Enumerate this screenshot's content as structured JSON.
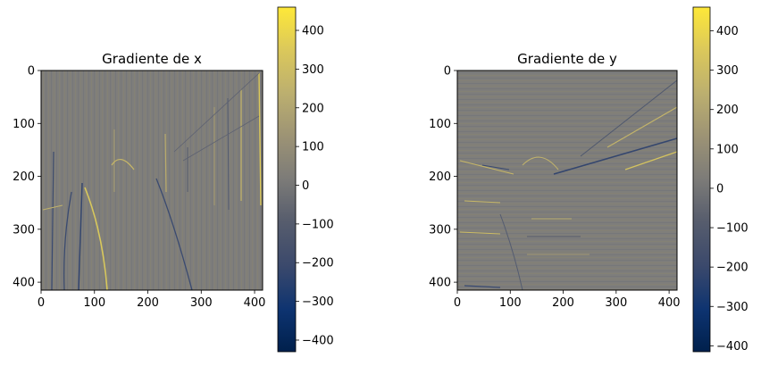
{
  "chart_data": [
    {
      "type": "heatmap",
      "title": "Gradiente de x",
      "xlabel": "",
      "ylabel": "",
      "xlim": [
        0,
        415
      ],
      "ylim": [
        415,
        0
      ],
      "xticks": [
        0,
        100,
        200,
        300,
        400
      ],
      "yticks": [
        0,
        100,
        200,
        300,
        400
      ],
      "colormap": "cividis",
      "colorbar": {
        "range": [
          -430,
          460
        ],
        "ticks": [
          -400,
          -300,
          -200,
          -100,
          0,
          100,
          200,
          300,
          400
        ],
        "tick_labels": [
          "−400",
          "−300",
          "−200",
          "−100",
          "0",
          "100",
          "200",
          "300",
          "400"
        ]
      },
      "grid": false
    },
    {
      "type": "heatmap",
      "title": "Gradiente de y",
      "xlabel": "",
      "ylabel": "",
      "xlim": [
        0,
        415
      ],
      "ylim": [
        415,
        0
      ],
      "xticks": [
        0,
        100,
        200,
        300,
        400
      ],
      "yticks": [
        0,
        100,
        200,
        300,
        400
      ],
      "colormap": "cividis",
      "colorbar": {
        "range": [
          -415,
          460
        ],
        "ticks": [
          -400,
          -300,
          -200,
          -100,
          0,
          100,
          200,
          300,
          400
        ],
        "tick_labels": [
          "−400",
          "−300",
          "−200",
          "−100",
          "0",
          "100",
          "200",
          "300",
          "400"
        ]
      },
      "grid": false
    }
  ]
}
